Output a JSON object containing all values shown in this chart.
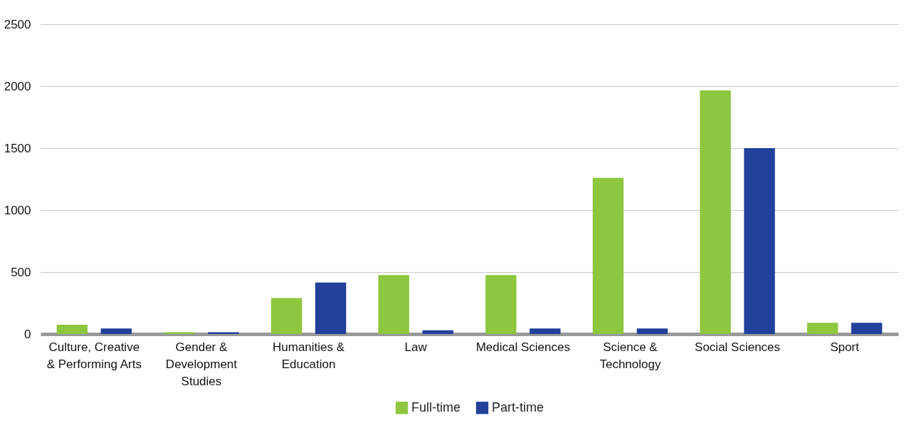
{
  "chart_data": {
    "type": "bar",
    "categories": [
      "Culture, Creative & Performing Arts",
      "Gender & Development Studies",
      "Humanities & Education",
      "Law",
      "Medical Sciences",
      "Science & Technology",
      "Social Sciences",
      "Sport"
    ],
    "series": [
      {
        "name": "Full-time",
        "color": "#8dc63f",
        "values": [
          75,
          15,
          290,
          475,
          475,
          1260,
          1965,
          90
        ]
      },
      {
        "name": "Part-time",
        "color": "#21409a",
        "values": [
          45,
          15,
          415,
          30,
          45,
          45,
          1500,
          90
        ]
      }
    ],
    "ylim": [
      0,
      2500
    ],
    "yticks": [
      0,
      500,
      1000,
      1500,
      2000,
      2500
    ],
    "grid": "y",
    "legend": "bottom"
  }
}
